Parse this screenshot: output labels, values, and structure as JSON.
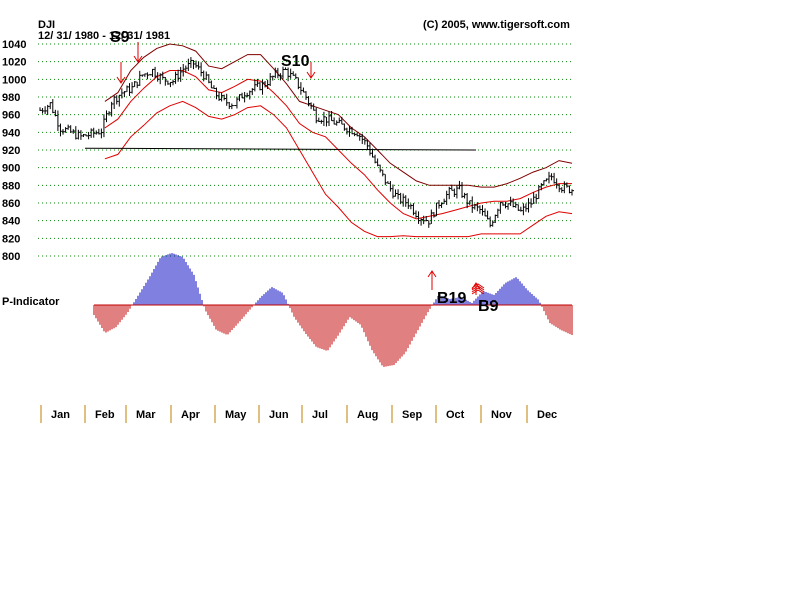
{
  "chart_data": {
    "type": "line",
    "symbol": "DJI",
    "date_range": "12/ 31/ 1980 - 12/ 31/ 1981",
    "copyright": "(C) 2005, www.tigersoft.com",
    "indicator_label": "P-Indicator",
    "ylim": [
      800,
      1040
    ],
    "y_ticks": [
      800,
      820,
      840,
      860,
      880,
      900,
      920,
      940,
      960,
      980,
      1000,
      1020,
      1040
    ],
    "months": [
      "Jan",
      "Feb",
      "Mar",
      "Apr",
      "May",
      "Jun",
      "Jul",
      "Aug",
      "Sep",
      "Oct",
      "Nov",
      "Dec"
    ],
    "weekly_close": [
      965,
      972,
      945,
      940,
      935,
      938,
      942,
      975,
      985,
      990,
      1005,
      1010,
      1000,
      998,
      1012,
      1018,
      1005,
      985,
      975,
      972,
      985,
      990,
      995,
      1005,
      1010,
      998,
      980,
      958,
      955,
      950,
      945,
      940,
      925,
      900,
      880,
      865,
      860,
      845,
      840,
      860,
      872,
      875,
      858,
      852,
      835,
      862,
      858,
      850,
      860,
      878,
      890,
      878,
      875
    ],
    "upper_band": [
      null,
      null,
      null,
      null,
      null,
      975,
      985,
      1010,
      1025,
      1035,
      1040,
      1038,
      1032,
      1015,
      1012,
      1020,
      1028,
      1028,
      1012,
      995,
      975,
      970,
      965,
      960,
      945,
      935,
      920,
      905,
      895,
      885,
      880,
      880,
      880,
      880,
      878,
      878,
      882,
      888,
      895,
      900,
      908,
      905
    ],
    "middle_band": [
      null,
      null,
      null,
      null,
      null,
      945,
      955,
      975,
      990,
      1003,
      1010,
      1010,
      1003,
      988,
      985,
      992,
      1000,
      998,
      985,
      970,
      950,
      940,
      935,
      920,
      905,
      892,
      875,
      860,
      848,
      842,
      845,
      848,
      852,
      856,
      860,
      862,
      862,
      865,
      872,
      878,
      882,
      882
    ],
    "lower_band": [
      null,
      null,
      null,
      null,
      null,
      910,
      915,
      935,
      948,
      962,
      970,
      975,
      968,
      958,
      955,
      960,
      968,
      970,
      960,
      945,
      920,
      895,
      870,
      855,
      838,
      828,
      822,
      822,
      823,
      822,
      822,
      822,
      822,
      822,
      825,
      825,
      825,
      825,
      835,
      845,
      850,
      848
    ],
    "resistance_line": [
      922,
      920
    ],
    "signals": [
      {
        "name": "S9",
        "type": "sell",
        "date": "1981-02-14"
      },
      {
        "name": "",
        "type": "sell",
        "date": "1981-02-28"
      },
      {
        "name": "S10",
        "type": "sell",
        "date": "1981-06-28"
      },
      {
        "name": "B19",
        "type": "buy",
        "date": "1981-09-26"
      },
      {
        "name": "B9",
        "type": "buy",
        "date": "1981-10-15"
      }
    ],
    "p_indicator": [
      -10,
      -28,
      -22,
      -8,
      10,
      28,
      48,
      52,
      48,
      30,
      -5,
      -25,
      -30,
      -18,
      -5,
      8,
      18,
      12,
      -12,
      -28,
      -42,
      -46,
      -30,
      -12,
      -20,
      -45,
      -62,
      -60,
      -48,
      -28,
      -8,
      10,
      6,
      8,
      2,
      14,
      10,
      22,
      28,
      15,
      5,
      -18,
      -25,
      -30
    ]
  }
}
